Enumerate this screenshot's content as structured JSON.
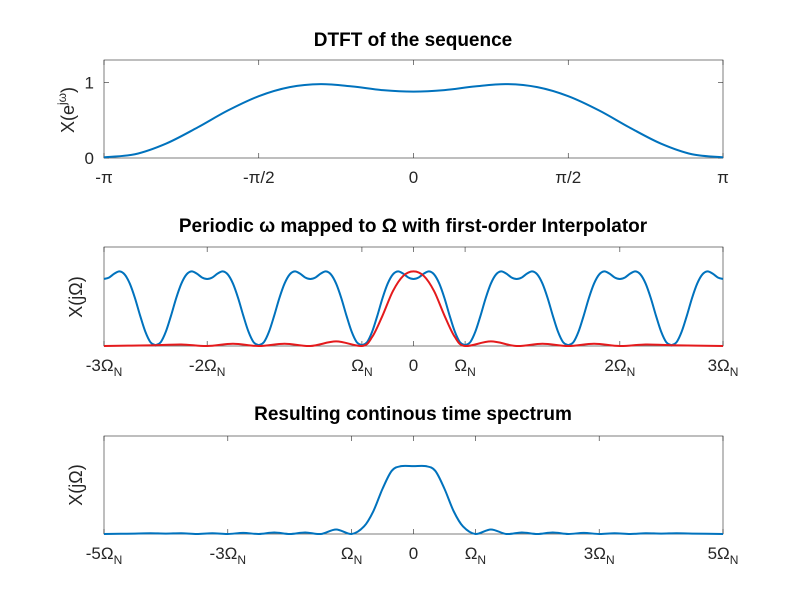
{
  "chart_data": [
    {
      "type": "line",
      "title": "DTFT of the sequence",
      "ylabel": {
        "base": "X(e",
        "sup": "jω",
        "end": ")"
      },
      "xlim": [
        -3.14159,
        3.14159
      ],
      "ylim": [
        0,
        1.3
      ],
      "xticks": [
        {
          "value": -3.14159,
          "label": "-π",
          "sub": ""
        },
        {
          "value": -1.5708,
          "label": "-π/2",
          "sub": ""
        },
        {
          "value": 0,
          "label": "0",
          "sub": ""
        },
        {
          "value": 1.5708,
          "label": "π/2",
          "sub": ""
        },
        {
          "value": 3.14159,
          "label": "π",
          "sub": ""
        }
      ],
      "yticks": [
        {
          "value": 0,
          "label": "0"
        },
        {
          "value": 1,
          "label": "1"
        }
      ],
      "series": [
        {
          "color": "#0072BD",
          "x": [
            -3.14159,
            -2.82743,
            -2.51327,
            -2.19911,
            -1.88496,
            -1.5708,
            -1.25664,
            -0.94248,
            -0.62832,
            -0.31416,
            0,
            0.31416,
            0.62832,
            0.94248,
            1.25664,
            1.5708,
            1.88496,
            2.19911,
            2.51327,
            2.82743,
            3.14159
          ],
          "y": [
            0.01,
            0.05,
            0.19,
            0.4,
            0.63,
            0.82,
            0.94,
            0.98,
            0.95,
            0.9,
            0.88,
            0.9,
            0.95,
            0.98,
            0.94,
            0.82,
            0.63,
            0.4,
            0.19,
            0.05,
            0.01
          ]
        }
      ]
    },
    {
      "type": "line",
      "title": "Periodic ω mapped to Ω with first-order Interpolator",
      "ylabel": {
        "base": "X(jΩ)",
        "sup": "",
        "end": ""
      },
      "xlim": [
        -6,
        6
      ],
      "ylim": [
        0,
        1.3
      ],
      "xticks": [
        {
          "value": -6,
          "label": "-3Ω",
          "sub": "N"
        },
        {
          "value": -4,
          "label": "-2Ω",
          "sub": "N"
        },
        {
          "value": -1,
          "label": "Ω",
          "sub": "N"
        },
        {
          "value": 0,
          "label": "0",
          "sub": ""
        },
        {
          "value": 1,
          "label": "Ω",
          "sub": "N"
        },
        {
          "value": 4,
          "label": "2Ω",
          "sub": "N"
        },
        {
          "value": 6,
          "label": "3Ω",
          "sub": "N"
        }
      ],
      "yticks": [],
      "series": [
        {
          "color": "#0072BD",
          "periodic": 2,
          "x": [
            -1,
            -0.9,
            -0.8,
            -0.7,
            -0.6,
            -0.5,
            -0.4,
            -0.3,
            -0.2,
            -0.1,
            0,
            0.1,
            0.2,
            0.3,
            0.4,
            0.5,
            0.6,
            0.7,
            0.8,
            0.9,
            1
          ],
          "y": [
            0.01,
            0.05,
            0.19,
            0.4,
            0.63,
            0.82,
            0.94,
            0.98,
            0.95,
            0.9,
            0.88,
            0.9,
            0.95,
            0.98,
            0.94,
            0.82,
            0.63,
            0.4,
            0.19,
            0.05,
            0.01
          ]
        },
        {
          "color": "#E41A1C",
          "x": [
            -6,
            -5,
            -4.5,
            -4,
            -3.5,
            -3,
            -2.5,
            -2,
            -1.5,
            -1,
            -0.8,
            -0.6,
            -0.4,
            -0.2,
            0,
            0.2,
            0.4,
            0.6,
            0.8,
            1,
            1.5,
            2,
            2.5,
            3,
            3.5,
            4,
            4.5,
            5,
            6
          ],
          "y": [
            0,
            0.01,
            0.02,
            0,
            0.03,
            0,
            0.03,
            0,
            0.06,
            0,
            0.12,
            0.4,
            0.72,
            0.92,
            0.98,
            0.92,
            0.72,
            0.4,
            0.12,
            0,
            0.06,
            0,
            0.03,
            0,
            0.03,
            0,
            0.02,
            0.01,
            0
          ]
        }
      ]
    },
    {
      "type": "line",
      "title": "Resulting continous time spectrum",
      "ylabel": {
        "base": "X(jΩ)",
        "sup": "",
        "end": ""
      },
      "xlim": [
        -10,
        10
      ],
      "ylim": [
        0,
        1.3
      ],
      "xticks": [
        {
          "value": -10,
          "label": "-5Ω",
          "sub": "N"
        },
        {
          "value": -6,
          "label": "-3Ω",
          "sub": "N"
        },
        {
          "value": -2,
          "label": "Ω",
          "sub": "N"
        },
        {
          "value": 0,
          "label": "0",
          "sub": ""
        },
        {
          "value": 2,
          "label": "Ω",
          "sub": "N"
        },
        {
          "value": 6,
          "label": "3Ω",
          "sub": "N"
        },
        {
          "value": 10,
          "label": "5Ω",
          "sub": "N"
        }
      ],
      "yticks": [],
      "series": [
        {
          "color": "#0072BD",
          "x": [
            -10,
            -9,
            -8.5,
            -8,
            -7.5,
            -7,
            -6.5,
            -6,
            -5.5,
            -5,
            -4.5,
            -4,
            -3.5,
            -3,
            -2.5,
            -2,
            -1.6,
            -1.3,
            -1,
            -0.7,
            -0.4,
            0,
            0.4,
            0.7,
            1,
            1.3,
            1.6,
            2,
            2.5,
            3,
            3.5,
            4,
            4.5,
            5,
            5.5,
            6,
            6.5,
            7,
            7.5,
            8,
            8.5,
            9,
            10
          ],
          "y": [
            0,
            0.005,
            0.01,
            0.005,
            0.01,
            0,
            0.01,
            0,
            0.015,
            0,
            0.02,
            0,
            0.02,
            0,
            0.06,
            0,
            0.1,
            0.3,
            0.6,
            0.84,
            0.9,
            0.9,
            0.9,
            0.84,
            0.6,
            0.3,
            0.1,
            0,
            0.06,
            0,
            0.02,
            0,
            0.02,
            0,
            0.015,
            0,
            0.01,
            0,
            0.01,
            0.005,
            0.01,
            0.005,
            0
          ]
        }
      ]
    }
  ]
}
